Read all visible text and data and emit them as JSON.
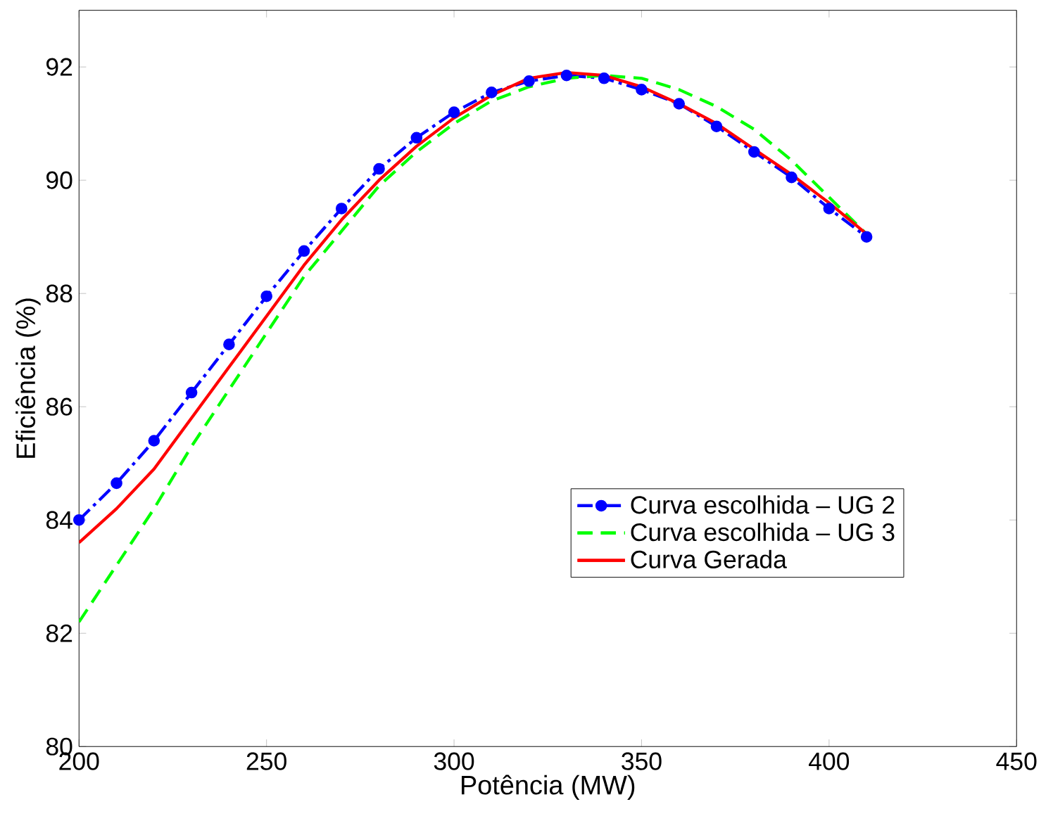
{
  "chart_data": {
    "type": "line",
    "xlabel": "Potência (MW)",
    "ylabel": "Eficiência (%)",
    "xlim": [
      200,
      450
    ],
    "xticks": [
      200,
      250,
      300,
      350,
      400,
      450
    ],
    "ylim": [
      80,
      93
    ],
    "yticks": [
      80,
      82,
      84,
      86,
      88,
      90,
      92
    ],
    "grid": false,
    "legend": "center right",
    "x": [
      200,
      210,
      220,
      230,
      240,
      250,
      260,
      270,
      280,
      290,
      300,
      310,
      320,
      330,
      340,
      350,
      360,
      370,
      380,
      390,
      400,
      410
    ],
    "series": [
      {
        "name": "Curva escolhida – UG 2",
        "color": "#0000ff",
        "marker": "circle",
        "line_style": "dashdot",
        "values": [
          84.0,
          84.65,
          85.4,
          86.25,
          87.1,
          87.95,
          88.75,
          89.5,
          90.2,
          90.75,
          91.2,
          91.55,
          91.75,
          91.85,
          91.8,
          91.6,
          91.35,
          90.95,
          90.5,
          90.05,
          89.5,
          89.0
        ]
      },
      {
        "name": "Curva escolhida – UG 3",
        "color": "#00ff00",
        "marker": "none",
        "line_style": "dashed",
        "values": [
          82.2,
          83.2,
          84.2,
          85.3,
          86.3,
          87.3,
          88.3,
          89.1,
          89.9,
          90.5,
          91.0,
          91.4,
          91.65,
          91.8,
          91.85,
          91.8,
          91.6,
          91.3,
          90.9,
          90.35,
          89.7,
          89.05
        ]
      },
      {
        "name": "Curva Gerada",
        "color": "#ff0000",
        "marker": "none",
        "line_style": "solid",
        "values": [
          83.6,
          84.2,
          84.9,
          85.8,
          86.7,
          87.6,
          88.5,
          89.3,
          90.0,
          90.6,
          91.1,
          91.5,
          91.8,
          91.9,
          91.85,
          91.65,
          91.35,
          91.0,
          90.55,
          90.1,
          89.6,
          89.05
        ]
      }
    ]
  }
}
